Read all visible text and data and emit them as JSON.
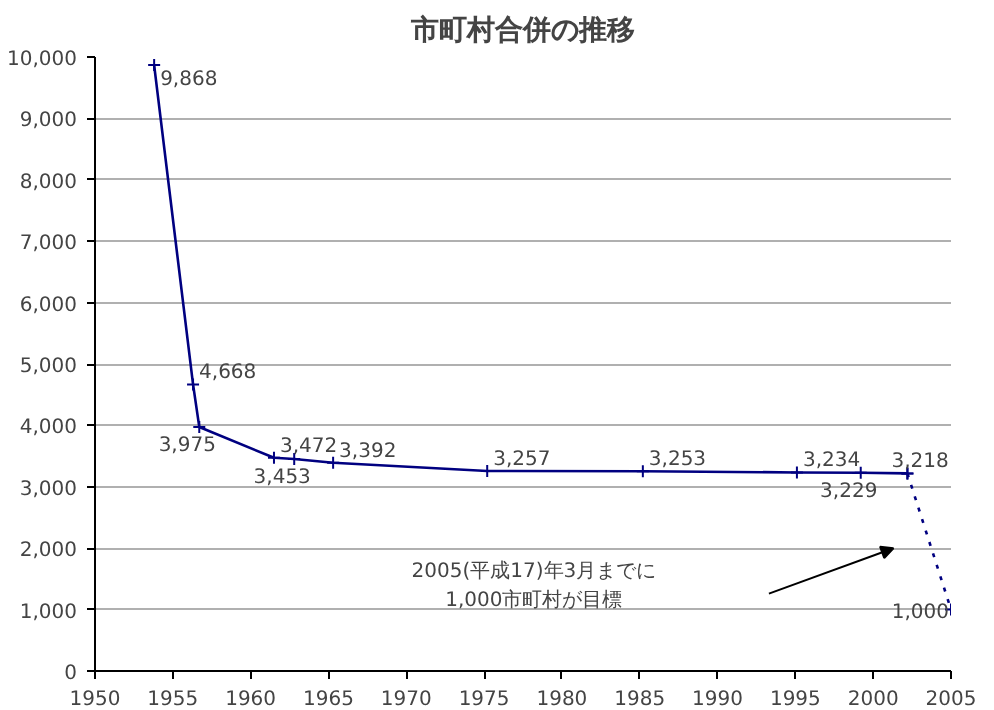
{
  "chart_data": {
    "type": "line",
    "title": "市町村合併の推移",
    "xlim": [
      1950,
      2005
    ],
    "xticks": [
      1950,
      1955,
      1960,
      1965,
      1970,
      1975,
      1980,
      1985,
      1990,
      1995,
      2000,
      2005
    ],
    "ylim": [
      0,
      10000
    ],
    "yticks": [
      {
        "value": 0,
        "label": "0"
      },
      {
        "value": 1000,
        "label": "1,000"
      },
      {
        "value": 2000,
        "label": "2,000"
      },
      {
        "value": 3000,
        "label": "3,000"
      },
      {
        "value": 4000,
        "label": "4,000"
      },
      {
        "value": 5000,
        "label": "5,000"
      },
      {
        "value": 6000,
        "label": "6,000"
      },
      {
        "value": 7000,
        "label": "7,000"
      },
      {
        "value": 8000,
        "label": "8,000"
      },
      {
        "value": 9000,
        "label": "9,000"
      },
      {
        "value": 10000,
        "label": "10,000"
      }
    ],
    "grid": "y",
    "marker": "cross",
    "series": [
      {
        "color": "#000080",
        "line_style": "solid",
        "x": [
          1953.8,
          1956.3,
          1956.7,
          1961.5,
          1962.8,
          1965.3,
          1975.2,
          1985.2,
          1995.1,
          1999.2,
          2002.2
        ],
        "values": [
          9868,
          4668,
          3975,
          3472,
          3453,
          3392,
          3257,
          3253,
          3234,
          3229,
          3218
        ],
        "value_labels": [
          "9,868",
          "4,668",
          "3,975",
          "3,472",
          "3,453",
          "3,392",
          "3,257",
          "3,253",
          "3,234",
          "3,229",
          "3,218"
        ]
      },
      {
        "color": "#000080",
        "line_style": "dotted",
        "x": [
          2002.2,
          2005.0
        ],
        "values": [
          3218,
          1000
        ],
        "value_labels": [
          null,
          "1,000"
        ]
      }
    ],
    "annotations": [
      "2005(平成17)年3月までに\n1,000市町村が目標"
    ]
  }
}
